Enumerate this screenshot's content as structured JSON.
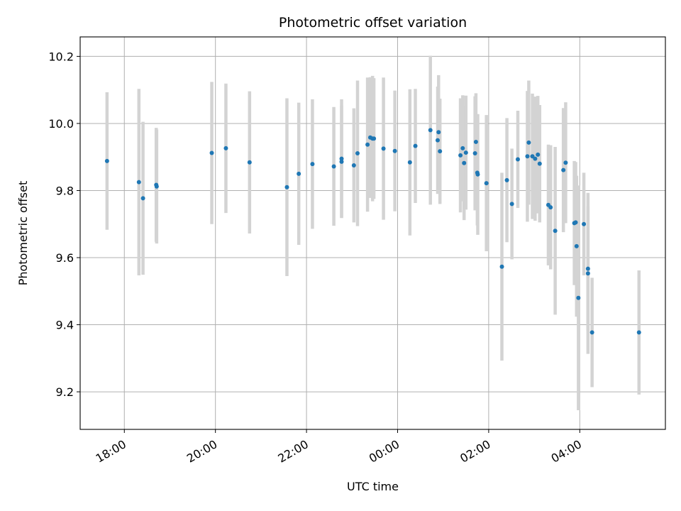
{
  "chart_data": {
    "type": "scatter",
    "title": "Photometric offset variation",
    "xlabel": "UTC time",
    "ylabel": "Photometric offset",
    "x_unit": "hours since 00:00 UTC",
    "xlim": [
      -6.97,
      5.88
    ],
    "ylim": [
      9.088,
      10.258
    ],
    "grid": true,
    "x_ticks": [
      {
        "value": -6,
        "label": "18:00"
      },
      {
        "value": -4,
        "label": "20:00"
      },
      {
        "value": -2,
        "label": "22:00"
      },
      {
        "value": 0,
        "label": "00:00"
      },
      {
        "value": 2,
        "label": "02:00"
      },
      {
        "value": 4,
        "label": "04:00"
      }
    ],
    "y_ticks": [
      {
        "value": 9.2,
        "label": "9.2"
      },
      {
        "value": 9.4,
        "label": "9.4"
      },
      {
        "value": 9.6,
        "label": "9.6"
      },
      {
        "value": 9.8,
        "label": "9.8"
      },
      {
        "value": 10.0,
        "label": "10.0"
      },
      {
        "value": 10.2,
        "label": "10.2"
      }
    ],
    "colors": {
      "point": "#1f77b4",
      "errorbar": "#d3d3d3",
      "grid": "#b0b0b0",
      "axes": "#000000"
    },
    "series": [
      {
        "name": "offset",
        "points": [
          {
            "x": -6.38,
            "y": 9.888,
            "err": 0.205
          },
          {
            "x": -5.68,
            "y": 9.825,
            "err": 0.278
          },
          {
            "x": -5.59,
            "y": 9.777,
            "err": 0.228
          },
          {
            "x": -5.3,
            "y": 9.817,
            "err": 0.17
          },
          {
            "x": -5.29,
            "y": 9.812,
            "err": 0.17
          },
          {
            "x": -4.08,
            "y": 9.912,
            "err": 0.212
          },
          {
            "x": -3.77,
            "y": 9.926,
            "err": 0.193
          },
          {
            "x": -3.25,
            "y": 9.884,
            "err": 0.212
          },
          {
            "x": -2.43,
            "y": 9.81,
            "err": 0.265
          },
          {
            "x": -2.17,
            "y": 9.85,
            "err": 0.212
          },
          {
            "x": -1.87,
            "y": 9.879,
            "err": 0.193
          },
          {
            "x": -1.4,
            "y": 9.872,
            "err": 0.177
          },
          {
            "x": -1.23,
            "y": 9.886,
            "err": 0.167
          },
          {
            "x": -1.23,
            "y": 9.895,
            "err": 0.177
          },
          {
            "x": -0.96,
            "y": 9.875,
            "err": 0.17
          },
          {
            "x": -0.88,
            "y": 9.911,
            "err": 0.217
          },
          {
            "x": -0.66,
            "y": 9.937,
            "err": 0.2
          },
          {
            "x": -0.6,
            "y": 9.958,
            "err": 0.18
          },
          {
            "x": -0.55,
            "y": 9.955,
            "err": 0.187
          },
          {
            "x": -0.52,
            "y": 9.955,
            "err": 0.18
          },
          {
            "x": -0.31,
            "y": 9.925,
            "err": 0.212
          },
          {
            "x": -0.06,
            "y": 9.918,
            "err": 0.18
          },
          {
            "x": 0.27,
            "y": 9.884,
            "err": 0.218
          },
          {
            "x": 0.39,
            "y": 9.933,
            "err": 0.17
          },
          {
            "x": 0.72,
            "y": 9.98,
            "err": 0.222
          },
          {
            "x": 0.88,
            "y": 9.95,
            "err": 0.16
          },
          {
            "x": 0.9,
            "y": 9.974,
            "err": 0.17
          },
          {
            "x": 0.93,
            "y": 9.917,
            "err": 0.157
          },
          {
            "x": 1.38,
            "y": 9.905,
            "err": 0.17
          },
          {
            "x": 1.43,
            "y": 9.926,
            "err": 0.158
          },
          {
            "x": 1.46,
            "y": 9.882,
            "err": 0.17
          },
          {
            "x": 1.5,
            "y": 9.913,
            "err": 0.17
          },
          {
            "x": 1.72,
            "y": 9.945,
            "err": 0.145
          },
          {
            "x": 1.7,
            "y": 9.911,
            "err": 0.17
          },
          {
            "x": 1.75,
            "y": 9.853,
            "err": 0.157
          },
          {
            "x": 1.76,
            "y": 9.848,
            "err": 0.18
          },
          {
            "x": 1.95,
            "y": 9.822,
            "err": 0.203
          },
          {
            "x": 2.29,
            "y": 9.573,
            "err": 0.28
          },
          {
            "x": 2.4,
            "y": 9.831,
            "err": 0.185
          },
          {
            "x": 2.51,
            "y": 9.76,
            "err": 0.165
          },
          {
            "x": 2.64,
            "y": 9.893,
            "err": 0.145
          },
          {
            "x": 2.85,
            "y": 9.902,
            "err": 0.195
          },
          {
            "x": 2.88,
            "y": 9.943,
            "err": 0.185
          },
          {
            "x": 2.96,
            "y": 9.902,
            "err": 0.187
          },
          {
            "x": 3.02,
            "y": 9.895,
            "err": 0.185
          },
          {
            "x": 3.08,
            "y": 9.907,
            "err": 0.175
          },
          {
            "x": 3.12,
            "y": 9.88,
            "err": 0.175
          },
          {
            "x": 3.31,
            "y": 9.757,
            "err": 0.18
          },
          {
            "x": 3.36,
            "y": 9.75,
            "err": 0.185
          },
          {
            "x": 3.46,
            "y": 9.68,
            "err": 0.25
          },
          {
            "x": 3.64,
            "y": 9.861,
            "err": 0.185
          },
          {
            "x": 3.69,
            "y": 9.883,
            "err": 0.18
          },
          {
            "x": 3.88,
            "y": 9.703,
            "err": 0.185
          },
          {
            "x": 3.91,
            "y": 9.705,
            "err": 0.18
          },
          {
            "x": 3.93,
            "y": 9.634,
            "err": 0.21
          },
          {
            "x": 3.97,
            "y": 9.48,
            "err": 0.335
          },
          {
            "x": 4.09,
            "y": 9.7,
            "err": 0.153
          },
          {
            "x": 4.18,
            "y": 9.567,
            "err": 0.185
          },
          {
            "x": 4.18,
            "y": 9.553,
            "err": 0.24
          },
          {
            "x": 4.27,
            "y": 9.377,
            "err": 0.163
          },
          {
            "x": 5.3,
            "y": 9.377,
            "err": 0.185
          }
        ]
      }
    ]
  }
}
